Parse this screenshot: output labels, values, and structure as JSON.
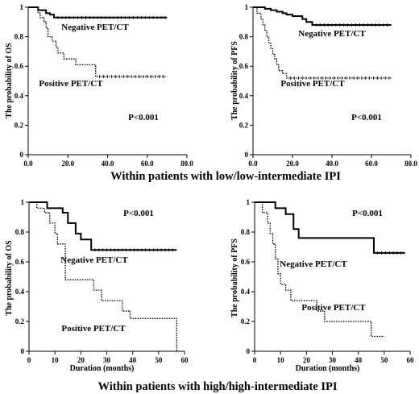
{
  "section_titles": {
    "top": "Within patients with low/low-intermediate IPI",
    "bottom": "Within patients with high/high-intermediate IPI"
  },
  "chart_data": [
    {
      "id": "top-left",
      "type": "line",
      "ylabel": "The probability of OS",
      "xlabel": "",
      "xlim": [
        0,
        80
      ],
      "ylim": [
        0,
        1
      ],
      "xticks": [
        "0.0",
        "20.0",
        "40.0",
        "60.0",
        "80.0"
      ],
      "yticks": [
        "0",
        "0.2",
        "0.4",
        "0.6",
        "0.8",
        "1"
      ],
      "pvalue": "P<0.001",
      "series": [
        {
          "name": "Negative PET/CT",
          "style": "solid",
          "x": [
            0,
            3,
            5,
            9,
            11,
            13,
            70
          ],
          "y": [
            1,
            1,
            0.98,
            0.96,
            0.95,
            0.93,
            0.93
          ]
        },
        {
          "name": "Positive PET/CT",
          "style": "dotted",
          "x": [
            0,
            5,
            6,
            8,
            9,
            10,
            12,
            14,
            15,
            18,
            24,
            34,
            70
          ],
          "y": [
            1,
            0.96,
            0.93,
            0.9,
            0.86,
            0.8,
            0.77,
            0.73,
            0.69,
            0.65,
            0.61,
            0.53,
            0.53
          ]
        }
      ]
    },
    {
      "id": "top-right",
      "type": "line",
      "ylabel": "The probability of PFS",
      "xlabel": "",
      "xlim": [
        0,
        80
      ],
      "ylim": [
        0,
        1
      ],
      "xticks": [
        "0.0",
        "20.0",
        "40.0",
        "60.0",
        "80.0"
      ],
      "yticks": [
        "0",
        "0.2",
        "0.4",
        "0.6",
        "0.8",
        "1"
      ],
      "pvalue": "P<0.001",
      "series": [
        {
          "name": "Negative PET/CT",
          "style": "solid",
          "x": [
            0,
            6,
            9,
            12,
            15,
            17,
            20,
            25,
            27,
            30,
            70
          ],
          "y": [
            1,
            0.99,
            0.98,
            0.97,
            0.96,
            0.95,
            0.94,
            0.92,
            0.9,
            0.88,
            0.88
          ]
        },
        {
          "name": "Positive PET/CT",
          "style": "dotted",
          "x": [
            0,
            2,
            4,
            5,
            6,
            7,
            8,
            9,
            10,
            11,
            12,
            13,
            15,
            17,
            70
          ],
          "y": [
            1,
            0.96,
            0.92,
            0.88,
            0.84,
            0.8,
            0.76,
            0.72,
            0.68,
            0.65,
            0.61,
            0.57,
            0.55,
            0.52,
            0.52
          ]
        }
      ]
    },
    {
      "id": "bottom-left",
      "type": "line",
      "ylabel": "The probability of OS",
      "xlabel": "Duration (months)",
      "xlim": [
        0,
        60
      ],
      "ylim": [
        0,
        1
      ],
      "xticks": [
        "0",
        "10",
        "20",
        "30",
        "40",
        "50",
        "60"
      ],
      "yticks": [
        "0",
        "0.2",
        "0.4",
        "0.6",
        "0.8",
        "1"
      ],
      "pvalue": "P<0.001",
      "series": [
        {
          "name": "Negative PET/CT",
          "style": "solid",
          "x": [
            0,
            7,
            13,
            15,
            18,
            20,
            24,
            57
          ],
          "y": [
            1,
            0.96,
            0.93,
            0.86,
            0.79,
            0.75,
            0.68,
            0.68
          ]
        },
        {
          "name": "Positive PET/CT",
          "style": "dotted",
          "x": [
            0,
            3,
            6,
            8,
            10,
            11,
            14,
            20,
            25,
            28,
            36,
            39,
            56,
            57
          ],
          "y": [
            1,
            0.96,
            0.93,
            0.86,
            0.79,
            0.72,
            0.48,
            0.48,
            0.41,
            0.34,
            0.27,
            0.22,
            0.22,
            0.0
          ]
        }
      ]
    },
    {
      "id": "bottom-right",
      "type": "line",
      "ylabel": "The probability of PFS",
      "xlabel": "Duration (months)",
      "xlim": [
        0,
        60
      ],
      "ylim": [
        0,
        1
      ],
      "xticks": [
        "0",
        "10",
        "20",
        "30",
        "40",
        "50",
        "60"
      ],
      "yticks": [
        "0",
        "0.2",
        "0.4",
        "0.6",
        "0.8",
        "1"
      ],
      "pvalue": "P<0.001",
      "series": [
        {
          "name": "Negative PET/CT",
          "style": "solid",
          "x": [
            0,
            8,
            12,
            15,
            17,
            46,
            58
          ],
          "y": [
            1,
            0.96,
            0.92,
            0.82,
            0.76,
            0.66,
            0.66
          ]
        },
        {
          "name": "Positive PET/CT",
          "style": "dotted",
          "x": [
            0,
            3,
            5,
            6,
            7,
            8,
            9,
            10,
            12,
            14,
            24,
            27,
            45,
            50
          ],
          "y": [
            1,
            0.93,
            0.86,
            0.79,
            0.72,
            0.62,
            0.52,
            0.45,
            0.41,
            0.34,
            0.27,
            0.2,
            0.1,
            0.1
          ]
        }
      ]
    }
  ]
}
